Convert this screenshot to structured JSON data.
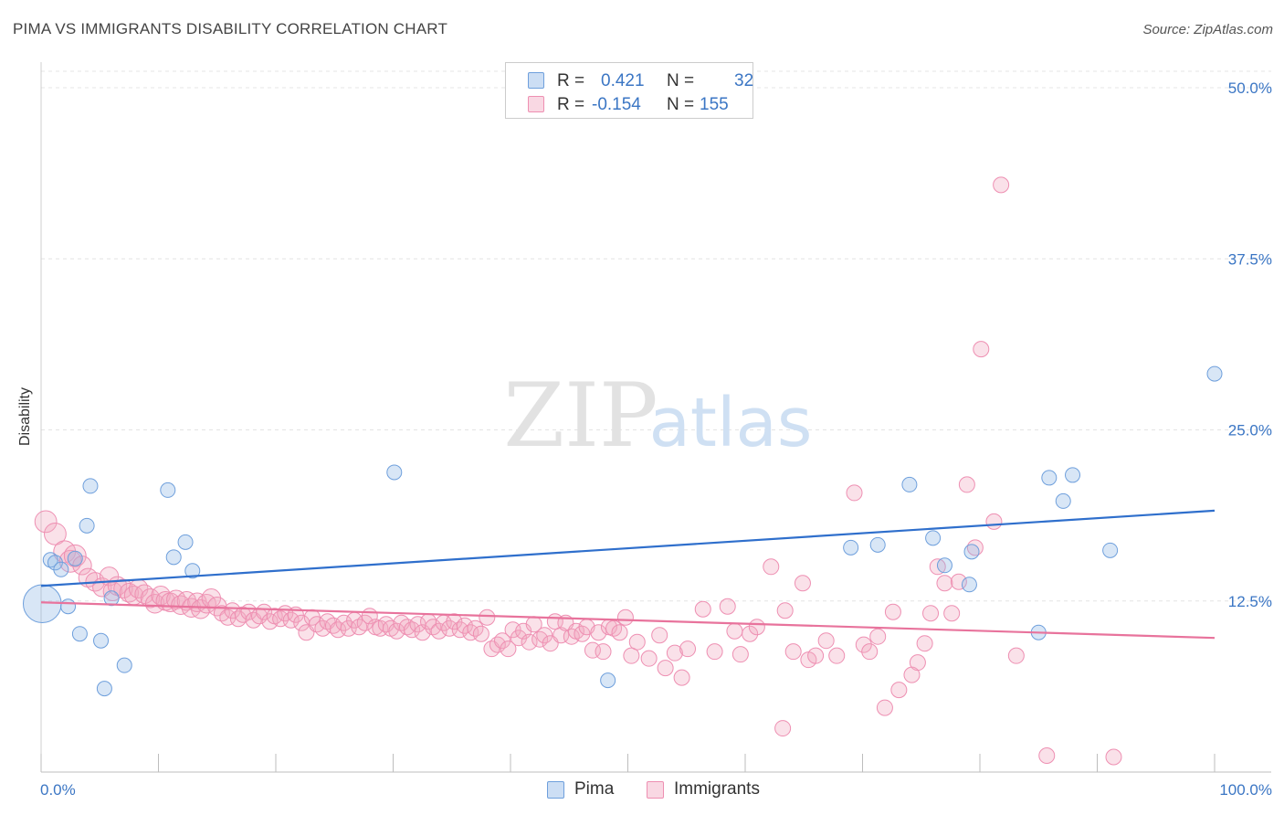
{
  "header": {
    "title": "PIMA VS IMMIGRANTS DISABILITY CORRELATION CHART",
    "source": "Source: ZipAtlas.com"
  },
  "watermark": {
    "zip": "ZIP",
    "atlas": "atlas"
  },
  "stats_box": {
    "rows": [
      {
        "r_label": "R =",
        "r_value": "0.421",
        "n_label": "N =",
        "n_value": "32",
        "color": "#8fb6e6"
      },
      {
        "r_label": "R =",
        "r_value": "-0.154",
        "n_label": "N =",
        "n_value": "155",
        "color": "#f1a8c1"
      }
    ]
  },
  "legend": [
    {
      "label": "Pima",
      "color": "#8fb6e6"
    },
    {
      "label": "Immigrants",
      "color": "#f1a8c1"
    }
  ],
  "colors": {
    "pima_fill": "rgba(143,182,230,0.35)",
    "pima_stroke": "#6e9fdc",
    "pima_line": "#2f6fcc",
    "imm_fill": "rgba(241,168,193,0.35)",
    "imm_stroke": "#ee8fb2",
    "imm_line": "#e8739c",
    "tick_label": "#3b76c4"
  },
  "chart_data": {
    "type": "scatter",
    "ylabel": "Disability",
    "xlim": [
      0,
      100
    ],
    "ylim": [
      0,
      50
    ],
    "x_tick_labels": [
      {
        "value": 0,
        "label": "0.0%"
      },
      {
        "value": 100,
        "label": "100.0%"
      }
    ],
    "y_tick_labels": [
      {
        "value": 12.5,
        "label": "12.5%"
      },
      {
        "value": 25,
        "label": "25.0%"
      },
      {
        "value": 37.5,
        "label": "37.5%"
      },
      {
        "value": 50,
        "label": "50.0%"
      }
    ],
    "grid": true,
    "series": [
      {
        "name": "Pima",
        "trend": [
          [
            0,
            13.6
          ],
          [
            100,
            19.1
          ]
        ],
        "points": [
          [
            0.1,
            12.3,
            2.6
          ],
          [
            0.8,
            15.5,
            1
          ],
          [
            1.2,
            15.3,
            1
          ],
          [
            1.7,
            14.8,
            1
          ],
          [
            2.3,
            12.1,
            1
          ],
          [
            2.9,
            15.6,
            1
          ],
          [
            3.3,
            10.1,
            1
          ],
          [
            3.9,
            18.0,
            1
          ],
          [
            4.2,
            20.9,
            1
          ],
          [
            5.1,
            9.6,
            1
          ],
          [
            5.4,
            6.1,
            1
          ],
          [
            6.0,
            12.7,
            1
          ],
          [
            7.1,
            7.8,
            1
          ],
          [
            10.8,
            20.6,
            1
          ],
          [
            11.3,
            15.7,
            1
          ],
          [
            12.3,
            16.8,
            1
          ],
          [
            12.9,
            14.7,
            1
          ],
          [
            30.1,
            21.9,
            1
          ],
          [
            48.3,
            6.7,
            1
          ],
          [
            69.0,
            16.4,
            1
          ],
          [
            71.3,
            16.6,
            1
          ],
          [
            74.0,
            21.0,
            1
          ],
          [
            76.0,
            17.1,
            1
          ],
          [
            77.0,
            15.1,
            1
          ],
          [
            79.1,
            13.7,
            1
          ],
          [
            79.3,
            16.1,
            1
          ],
          [
            85.0,
            10.2,
            1
          ],
          [
            85.9,
            21.5,
            1
          ],
          [
            87.1,
            19.8,
            1
          ],
          [
            87.9,
            21.7,
            1
          ],
          [
            91.1,
            16.2,
            1
          ],
          [
            100.0,
            29.1,
            1
          ]
        ]
      },
      {
        "name": "Immigrants",
        "trend": [
          [
            0,
            12.4
          ],
          [
            100,
            9.8
          ]
        ],
        "points": [
          [
            0.4,
            18.3,
            1.4
          ],
          [
            1.2,
            17.4,
            1.4
          ],
          [
            2.0,
            16.1,
            1.4
          ],
          [
            2.5,
            15.4,
            1.4
          ],
          [
            2.9,
            15.8,
            1.4
          ],
          [
            3.5,
            15.1,
            1.2
          ],
          [
            4.0,
            14.2,
            1.2
          ],
          [
            4.6,
            13.9,
            1.2
          ],
          [
            5.2,
            13.5,
            1.2
          ],
          [
            5.8,
            14.3,
            1.2
          ],
          [
            6.1,
            13.2,
            1.2
          ],
          [
            6.5,
            13.6,
            1.2
          ],
          [
            7.0,
            13.4,
            1.2
          ],
          [
            7.5,
            13.1,
            1.2
          ],
          [
            7.9,
            12.9,
            1.2
          ],
          [
            8.3,
            13.4,
            1.2
          ],
          [
            8.8,
            13.0,
            1.2
          ],
          [
            9.3,
            12.7,
            1.2
          ],
          [
            9.7,
            12.3,
            1.2
          ],
          [
            10.2,
            12.9,
            1.2
          ],
          [
            10.6,
            12.5,
            1.2
          ],
          [
            11.0,
            12.4,
            1.2
          ],
          [
            11.5,
            12.6,
            1.2
          ],
          [
            11.9,
            12.2,
            1.2
          ],
          [
            12.4,
            12.5,
            1.2
          ],
          [
            12.8,
            12.0,
            1.2
          ],
          [
            13.3,
            12.4,
            1.2
          ],
          [
            13.6,
            11.9,
            1.2
          ],
          [
            14.1,
            12.3,
            1.2
          ],
          [
            14.5,
            12.7,
            1.2
          ],
          [
            15.0,
            12.1,
            1.2
          ],
          [
            15.4,
            11.6,
            1
          ],
          [
            15.9,
            11.3,
            1
          ],
          [
            16.3,
            11.8,
            1
          ],
          [
            16.8,
            11.2,
            1
          ],
          [
            17.2,
            11.5,
            1
          ],
          [
            17.7,
            11.7,
            1
          ],
          [
            18.1,
            11.1,
            1
          ],
          [
            18.6,
            11.4,
            1
          ],
          [
            19.0,
            11.7,
            1
          ],
          [
            19.5,
            11.0,
            1
          ],
          [
            19.9,
            11.4,
            1
          ],
          [
            20.4,
            11.2,
            1
          ],
          [
            20.8,
            11.6,
            1
          ],
          [
            21.3,
            11.1,
            1
          ],
          [
            21.7,
            11.5,
            1
          ],
          [
            22.2,
            10.9,
            1
          ],
          [
            22.6,
            10.2,
            1
          ],
          [
            23.1,
            11.3,
            1
          ],
          [
            23.5,
            10.8,
            1
          ],
          [
            24.0,
            10.5,
            1
          ],
          [
            24.4,
            11.0,
            1
          ],
          [
            24.9,
            10.7,
            1
          ],
          [
            25.3,
            10.4,
            1
          ],
          [
            25.8,
            10.9,
            1
          ],
          [
            26.2,
            10.5,
            1
          ],
          [
            26.7,
            11.1,
            1
          ],
          [
            27.1,
            10.6,
            1
          ],
          [
            27.6,
            10.9,
            1
          ],
          [
            28.0,
            11.4,
            1
          ],
          [
            28.5,
            10.6,
            1
          ],
          [
            28.9,
            10.5,
            1
          ],
          [
            29.4,
            10.8,
            1
          ],
          [
            29.8,
            10.5,
            1
          ],
          [
            30.3,
            10.3,
            1
          ],
          [
            30.7,
            10.9,
            1
          ],
          [
            31.2,
            10.6,
            1
          ],
          [
            31.6,
            10.4,
            1
          ],
          [
            32.1,
            10.8,
            1
          ],
          [
            32.5,
            10.2,
            1
          ],
          [
            33.0,
            11.0,
            1
          ],
          [
            33.4,
            10.6,
            1
          ],
          [
            33.9,
            10.3,
            1
          ],
          [
            34.3,
            10.9,
            1
          ],
          [
            34.8,
            10.5,
            1
          ],
          [
            35.2,
            11.0,
            1
          ],
          [
            35.7,
            10.4,
            1
          ],
          [
            36.1,
            10.7,
            1
          ],
          [
            36.6,
            10.2,
            1
          ],
          [
            37.0,
            10.5,
            1
          ],
          [
            37.5,
            10.1,
            1
          ],
          [
            38.0,
            11.3,
            1
          ],
          [
            38.4,
            9.0,
            1
          ],
          [
            38.9,
            9.3,
            1
          ],
          [
            39.3,
            9.6,
            1
          ],
          [
            39.8,
            9.0,
            1
          ],
          [
            40.2,
            10.4,
            1
          ],
          [
            40.7,
            9.8,
            1
          ],
          [
            41.1,
            10.3,
            1
          ],
          [
            41.6,
            9.5,
            1
          ],
          [
            42.0,
            10.8,
            1
          ],
          [
            42.5,
            9.7,
            1
          ],
          [
            42.9,
            10.0,
            1
          ],
          [
            43.4,
            9.4,
            1
          ],
          [
            43.8,
            11.0,
            1
          ],
          [
            44.3,
            10.0,
            1
          ],
          [
            44.7,
            10.9,
            1
          ],
          [
            45.2,
            9.9,
            1
          ],
          [
            45.6,
            10.3,
            1
          ],
          [
            46.1,
            10.1,
            1
          ],
          [
            46.5,
            10.6,
            1
          ],
          [
            47.0,
            8.9,
            1
          ],
          [
            47.5,
            10.2,
            1
          ],
          [
            47.9,
            8.8,
            1
          ],
          [
            48.4,
            10.6,
            1
          ],
          [
            48.8,
            10.5,
            1
          ],
          [
            49.3,
            10.2,
            1
          ],
          [
            49.8,
            11.3,
            1
          ],
          [
            50.3,
            8.5,
            1
          ],
          [
            50.8,
            9.5,
            1
          ],
          [
            51.8,
            8.3,
            1
          ],
          [
            52.7,
            10.0,
            1
          ],
          [
            53.2,
            7.6,
            1
          ],
          [
            54.0,
            8.7,
            1
          ],
          [
            54.6,
            6.9,
            1
          ],
          [
            55.1,
            9.0,
            1
          ],
          [
            56.4,
            11.9,
            1
          ],
          [
            57.4,
            8.8,
            1
          ],
          [
            58.5,
            12.1,
            1
          ],
          [
            59.1,
            10.3,
            1
          ],
          [
            59.6,
            8.6,
            1
          ],
          [
            60.4,
            10.1,
            1
          ],
          [
            61.0,
            10.6,
            1
          ],
          [
            62.2,
            15.0,
            1
          ],
          [
            63.4,
            11.8,
            1
          ],
          [
            64.1,
            8.8,
            1
          ],
          [
            64.9,
            13.8,
            1
          ],
          [
            65.4,
            8.2,
            1
          ],
          [
            66.0,
            8.5,
            1
          ],
          [
            66.9,
            9.6,
            1
          ],
          [
            67.8,
            8.5,
            1
          ],
          [
            69.3,
            20.4,
            1
          ],
          [
            70.1,
            9.3,
            1
          ],
          [
            70.6,
            8.8,
            1
          ],
          [
            71.3,
            9.9,
            1
          ],
          [
            71.9,
            4.7,
            1
          ],
          [
            73.1,
            6.0,
            1
          ],
          [
            74.2,
            7.1,
            1
          ],
          [
            74.7,
            8.0,
            1
          ],
          [
            75.3,
            9.4,
            1
          ],
          [
            75.8,
            11.6,
            1
          ],
          [
            76.4,
            15.0,
            1
          ],
          [
            77.0,
            13.8,
            1
          ],
          [
            77.6,
            11.6,
            1
          ],
          [
            78.2,
            13.9,
            1
          ],
          [
            78.9,
            21.0,
            1
          ],
          [
            79.6,
            16.4,
            1
          ],
          [
            80.1,
            30.9,
            1
          ],
          [
            81.2,
            18.3,
            1
          ],
          [
            81.8,
            42.9,
            1
          ],
          [
            83.1,
            8.5,
            1
          ],
          [
            85.7,
            1.2,
            1
          ],
          [
            91.4,
            1.1,
            1
          ],
          [
            63.2,
            3.2,
            1
          ],
          [
            72.6,
            11.7,
            1
          ]
        ]
      }
    ]
  }
}
